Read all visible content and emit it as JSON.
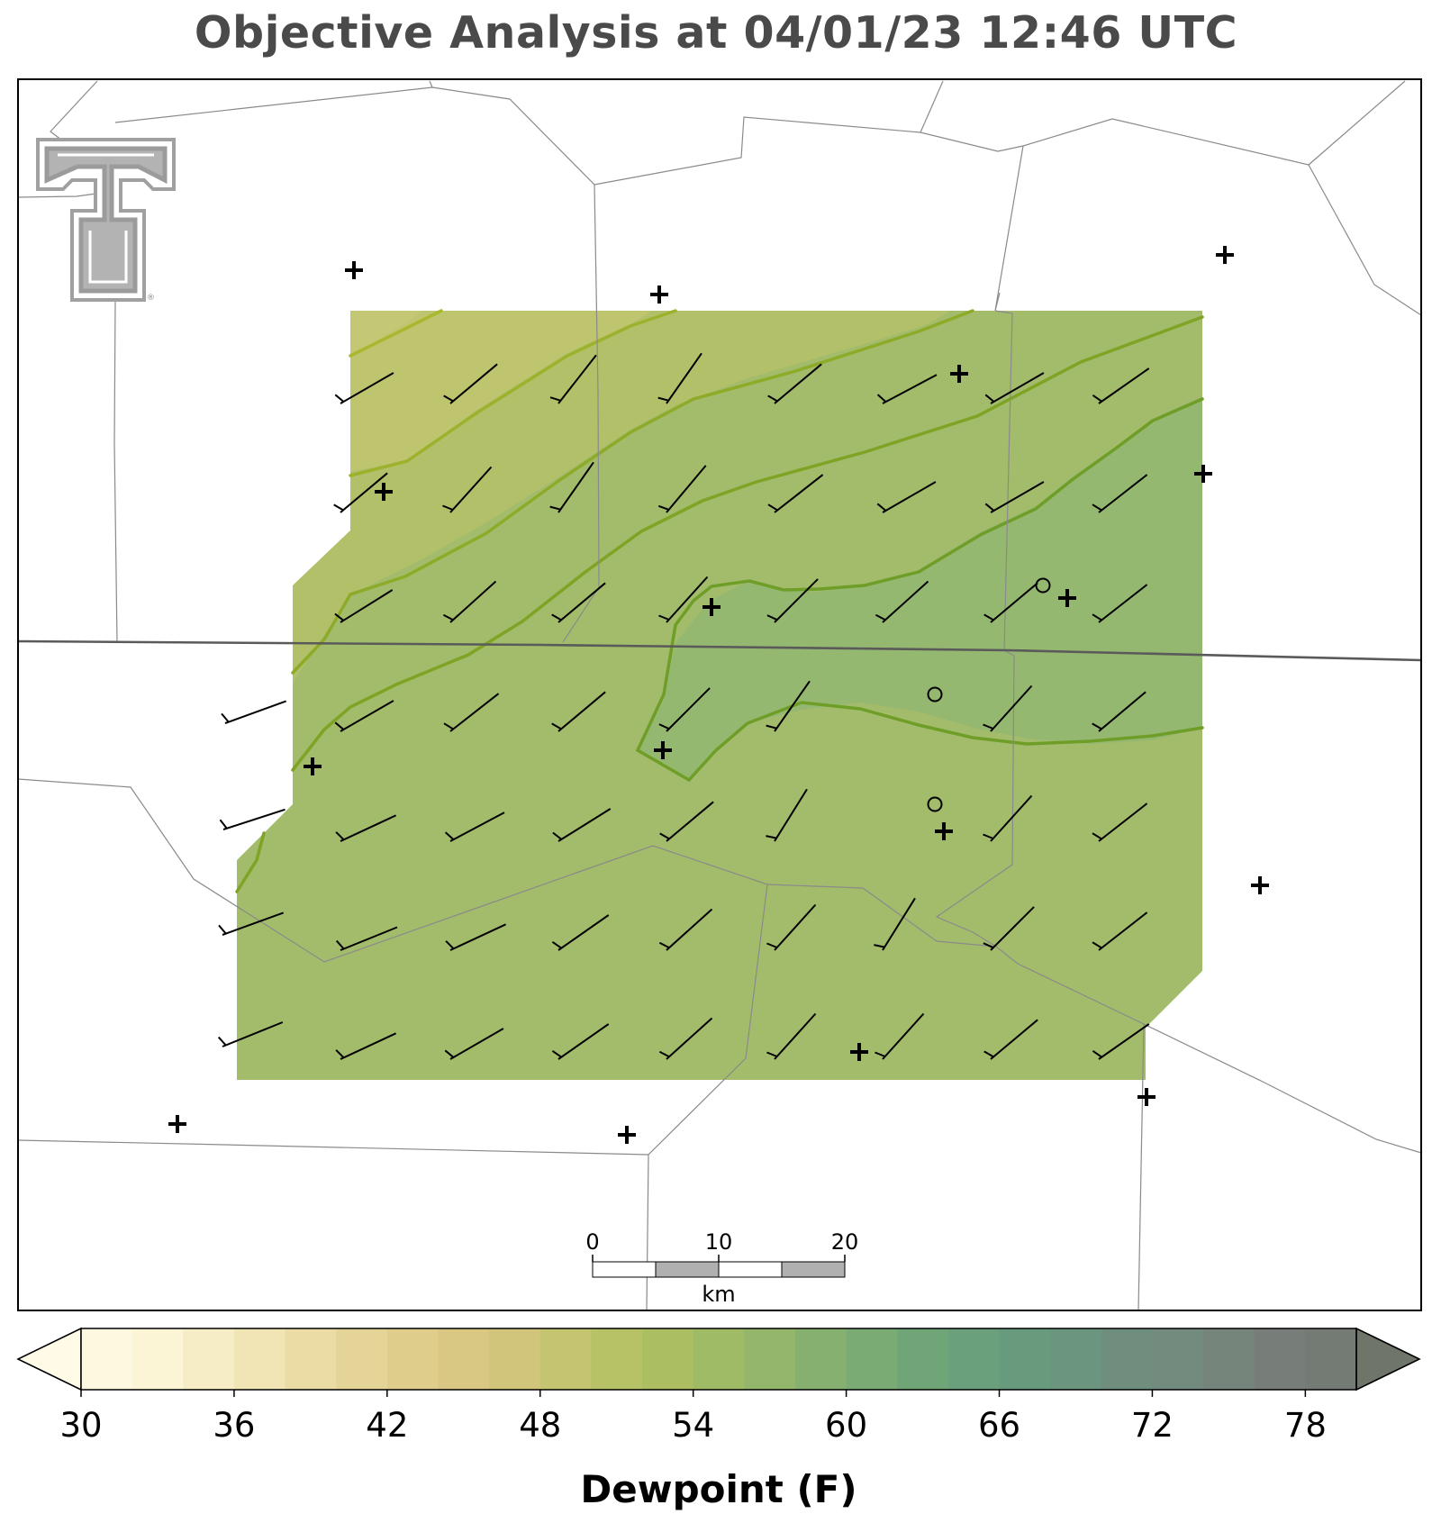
{
  "title": "Objective Analysis at 04/01/23 12:46 UTC",
  "colorbar": {
    "label": "Dewpoint (F)",
    "min": 30,
    "max": 80,
    "step": 2,
    "ticks": [
      "30",
      "36",
      "42",
      "48",
      "54",
      "60",
      "66",
      "72",
      "78"
    ],
    "colors": [
      "#fdf9e0",
      "#fbf5d6",
      "#f6edc6",
      "#f1e4b5",
      "#ebdca5",
      "#e5d497",
      "#dfcd8b",
      "#d9c883",
      "#d0c57a",
      "#c5c471",
      "#b7c266",
      "#abbe62",
      "#a0bb66",
      "#93b66b",
      "#86b06f",
      "#7aab74",
      "#70a677",
      "#6aa07b",
      "#689b7e",
      "#6b957f",
      "#6f8e7e",
      "#738a7e",
      "#76857c",
      "#777d78",
      "#747a74"
    ],
    "under_color": "#fffbe6",
    "over_color": "#6f7569"
  },
  "scale_bar": {
    "labels": [
      "0",
      "10",
      "20"
    ],
    "unit": "km"
  },
  "logo": {
    "type": "texas-tech-double-t",
    "mark": "®"
  },
  "analysis": {
    "variable": "dewpoint",
    "units": "F",
    "fill_colors": [
      "#c2c66f",
      "#b5c269",
      "#a7bd67",
      "#9dba6a",
      "#90b46e"
    ],
    "contour_colors": [
      "#a8b534",
      "#93ab2a",
      "#82a425",
      "#6f9e28"
    ]
  },
  "stations": {
    "calm_count": 3,
    "plus_count": 17
  },
  "wind": {
    "barb_rows": 7,
    "barb_cols": 8,
    "note_dir": "southwest"
  }
}
